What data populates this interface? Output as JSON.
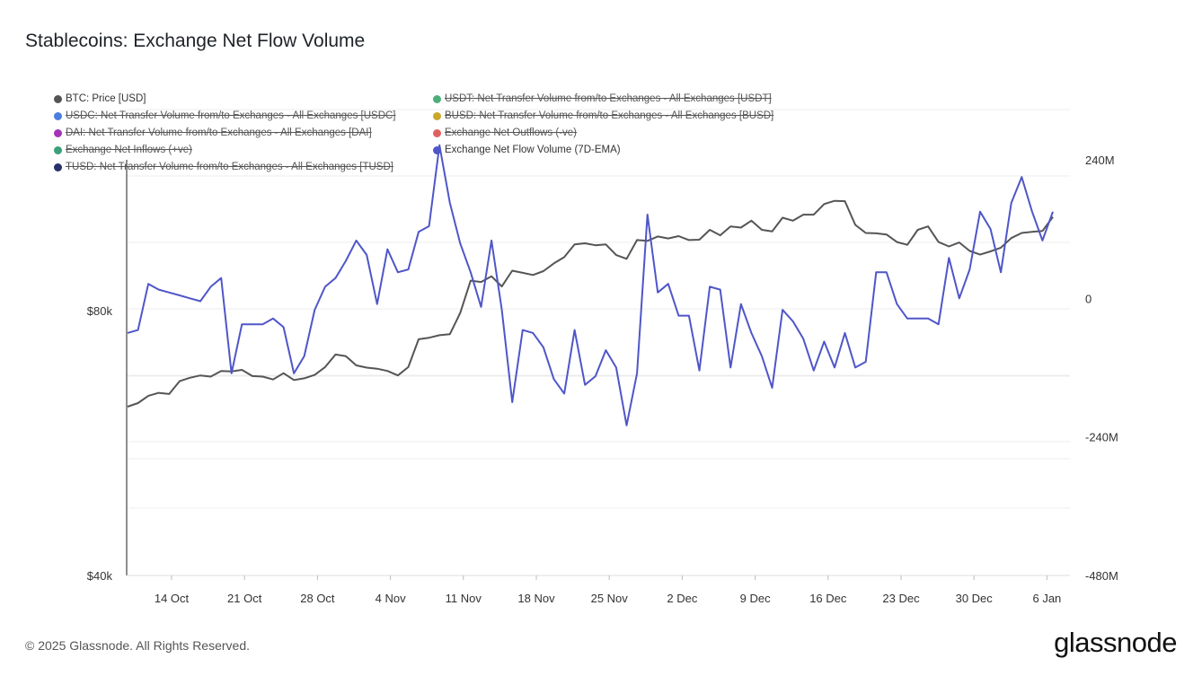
{
  "title": "Stablecoins: Exchange Net Flow Volume",
  "footer": "© 2025 Glassnode. All Rights Reserved.",
  "brand": "glassnode",
  "legend": [
    {
      "label": "BTC: Price [USD]",
      "color": "#555555",
      "active": true
    },
    {
      "label": "USDT: Net Transfer Volume from/to Exchanges - All Exchanges [USDT]",
      "color": "#4caf7a",
      "active": false
    },
    {
      "label": "USDC: Net Transfer Volume from/to Exchanges - All Exchanges [USDC]",
      "color": "#4a7fe0",
      "active": false
    },
    {
      "label": "BUSD: Net Transfer Volume from/to Exchanges - All Exchanges [BUSD]",
      "color": "#c9a82a",
      "active": false
    },
    {
      "label": "DAI: Net Transfer Volume from/to Exchanges - All Exchanges [DAI]",
      "color": "#a335b8",
      "active": false
    },
    {
      "label": "Exchange Net Outflows (-ve)",
      "color": "#e06060",
      "active": false
    },
    {
      "label": "Exchange Net Inflows (+ve)",
      "color": "#3aa07a",
      "active": false
    },
    {
      "label": "Exchange Net Flow Volume (7D-EMA)",
      "color": "#4f56c8",
      "active": true
    },
    {
      "label": "TUSD: Net Transfer Volume from/to Exchanges - All Exchanges [TUSD]",
      "color": "#26306b",
      "active": false
    }
  ],
  "chart_data": {
    "type": "line",
    "x_tick_labels": [
      "14 Oct",
      "21 Oct",
      "28 Oct",
      "4 Nov",
      "11 Nov",
      "18 Nov",
      "25 Nov",
      "2 Dec",
      "9 Dec",
      "16 Dec",
      "23 Dec",
      "30 Dec",
      "6 Jan"
    ],
    "left_axis": {
      "scale": "log",
      "tick_labels": [
        "$80k",
        "$40k"
      ],
      "range": [
        40000,
        136000
      ]
    },
    "right_axis": {
      "tick_labels": [
        "240M",
        "0",
        "-240M",
        "-480M"
      ],
      "range": [
        -480,
        330
      ],
      "unit": "M"
    },
    "series": [
      {
        "name": "BTC: Price [USD]",
        "axis": "left",
        "color": "#555555",
        "values": [
          62200,
          62800,
          64000,
          64500,
          64300,
          66500,
          67100,
          67500,
          67300,
          68300,
          68200,
          68500,
          67400,
          67300,
          66800,
          67900,
          66700,
          67000,
          67600,
          69000,
          71300,
          71000,
          69300,
          68900,
          68700,
          68300,
          67500,
          69000,
          74200,
          74500,
          75000,
          75200,
          79500,
          86500,
          86200,
          87500,
          85200,
          88800,
          88300,
          87800,
          88700,
          90500,
          92000,
          95100,
          95400,
          94900,
          95100,
          92500,
          91600,
          96200,
          96000,
          97100,
          96600,
          97200,
          96200,
          96300,
          98800,
          97400,
          99700,
          99400,
          101200,
          98800,
          98400,
          102000,
          101200,
          102800,
          102800,
          105700,
          106600,
          106500,
          100100,
          98000,
          97900,
          97600,
          95700,
          95000,
          98800,
          99700,
          95700,
          94600,
          95600,
          93500,
          92600,
          93400,
          94300,
          96700,
          98000,
          98300,
          98500,
          102200
        ]
      },
      {
        "name": "Exchange Net Flow Volume (7D-EMA)",
        "axis": "right",
        "color": "#4f56c8",
        "values": [
          -60,
          -55,
          25,
          15,
          10,
          5,
          0,
          -5,
          20,
          35,
          -130,
          -45,
          -45,
          -45,
          -35,
          -50,
          -130,
          -100,
          -20,
          20,
          35,
          65,
          100,
          75,
          -10,
          85,
          45,
          50,
          115,
          125,
          265,
          165,
          95,
          45,
          -15,
          100,
          -20,
          -180,
          -55,
          -60,
          -85,
          -140,
          -165,
          -55,
          -150,
          -135,
          -90,
          -120,
          -220,
          -130,
          145,
          10,
          25,
          -30,
          -30,
          -125,
          20,
          15,
          -120,
          -10,
          -60,
          -100,
          -155,
          -20,
          -40,
          -70,
          -125,
          -75,
          -120,
          -60,
          -120,
          -110,
          45,
          45,
          -10,
          -35,
          -35,
          -35,
          -45,
          70,
          0,
          50,
          150,
          120,
          45,
          165,
          210,
          150,
          100,
          150
        ]
      }
    ]
  }
}
